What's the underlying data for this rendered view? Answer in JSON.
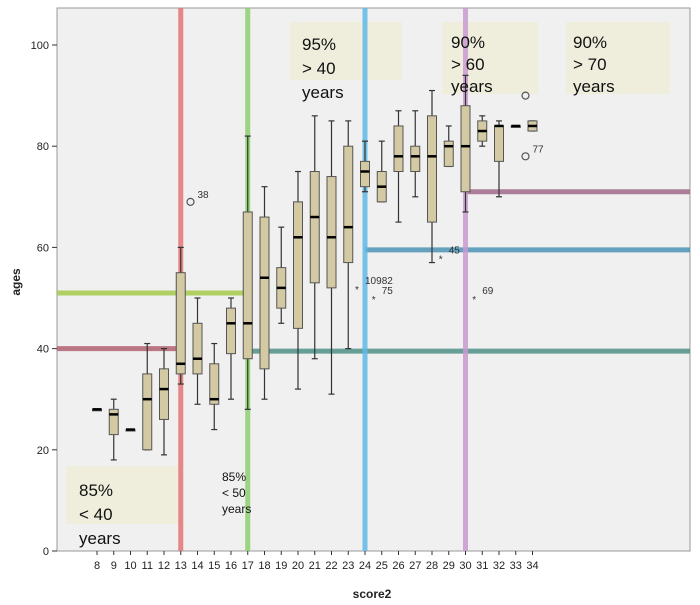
{
  "chart_data": {
    "type": "boxplot",
    "xlabel": "score2",
    "ylabel": "ages",
    "ylim": [
      0,
      105
    ],
    "yticks": [
      0,
      20,
      40,
      60,
      80,
      100
    ],
    "categories": [
      "8",
      "9",
      "10",
      "11",
      "12",
      "13",
      "14",
      "15",
      "16",
      "17",
      "18",
      "19",
      "20",
      "21",
      "22",
      "23",
      "24",
      "25",
      "26",
      "27",
      "28",
      "29",
      "30",
      "31",
      "32",
      "33",
      "34"
    ],
    "boxes": [
      {
        "x": "8",
        "min": 28,
        "q1": 28,
        "median": 28,
        "q3": 28,
        "max": 28
      },
      {
        "x": "9",
        "min": 18,
        "q1": 23,
        "median": 27,
        "q3": 28,
        "max": 30
      },
      {
        "x": "10",
        "min": 24,
        "q1": 24,
        "median": 24,
        "q3": 24,
        "max": 24
      },
      {
        "x": "11",
        "min": 20,
        "q1": 20,
        "median": 30,
        "q3": 35,
        "max": 41
      },
      {
        "x": "12",
        "min": 19,
        "q1": 26,
        "median": 32,
        "q3": 36,
        "max": 40
      },
      {
        "x": "13",
        "min": 33,
        "q1": 35,
        "median": 37,
        "q3": 55,
        "max": 60
      },
      {
        "x": "14",
        "min": 29,
        "q1": 35,
        "median": 38,
        "q3": 45,
        "max": 50
      },
      {
        "x": "15",
        "min": 24,
        "q1": 29,
        "median": 30,
        "q3": 37,
        "max": 41
      },
      {
        "x": "16",
        "min": 30,
        "q1": 39,
        "median": 45,
        "q3": 48,
        "max": 50
      },
      {
        "x": "17",
        "min": 28,
        "q1": 38,
        "median": 45,
        "q3": 67,
        "max": 82
      },
      {
        "x": "18",
        "min": 30,
        "q1": 36,
        "median": 54,
        "q3": 66,
        "max": 72
      },
      {
        "x": "19",
        "min": 45,
        "q1": 48,
        "median": 52,
        "q3": 56,
        "max": 64
      },
      {
        "x": "20",
        "min": 32,
        "q1": 44,
        "median": 62,
        "q3": 69,
        "max": 75
      },
      {
        "x": "21",
        "min": 38,
        "q1": 53,
        "median": 66,
        "q3": 75,
        "max": 86
      },
      {
        "x": "22",
        "min": 31,
        "q1": 52,
        "median": 62,
        "q3": 74,
        "max": 85
      },
      {
        "x": "23",
        "min": 40,
        "q1": 57,
        "median": 64,
        "q3": 80,
        "max": 85
      },
      {
        "x": "24",
        "min": 71,
        "q1": 72,
        "median": 75,
        "q3": 77,
        "max": 81
      },
      {
        "x": "25",
        "min": 69,
        "q1": 69,
        "median": 72,
        "q3": 75,
        "max": 81
      },
      {
        "x": "26",
        "min": 65,
        "q1": 75,
        "median": 78,
        "q3": 84,
        "max": 87
      },
      {
        "x": "27",
        "min": 70,
        "q1": 75,
        "median": 78,
        "q3": 80,
        "max": 87
      },
      {
        "x": "28",
        "min": 57,
        "q1": 65,
        "median": 78,
        "q3": 86,
        "max": 91
      },
      {
        "x": "29",
        "min": 76,
        "q1": 76,
        "median": 80,
        "q3": 81,
        "max": 84
      },
      {
        "x": "30",
        "min": 67,
        "q1": 71,
        "median": 80,
        "q3": 88,
        "max": 94
      },
      {
        "x": "31",
        "min": 80,
        "q1": 81,
        "median": 83,
        "q3": 85,
        "max": 86
      },
      {
        "x": "32",
        "min": 70,
        "q1": 77,
        "median": 84,
        "q3": 84,
        "max": 85
      },
      {
        "x": "33",
        "min": 84,
        "q1": 84,
        "median": 84,
        "q3": 84,
        "max": 84
      },
      {
        "x": "34",
        "min": 83,
        "q1": 83,
        "median": 84,
        "q3": 85,
        "max": 85
      }
    ],
    "outliers": [
      {
        "x": "14",
        "y": 69,
        "marker": "circle",
        "label": "38"
      },
      {
        "x": "24",
        "y": 52,
        "marker": "star",
        "label": "109"
      },
      {
        "x": "25",
        "y": 50,
        "marker": "star",
        "label": "75"
      },
      {
        "x": "25",
        "y": 52,
        "marker": "none",
        "label": "82"
      },
      {
        "x": "29",
        "y": 58,
        "marker": "star",
        "label": "45"
      },
      {
        "x": "31",
        "y": 50,
        "marker": "star",
        "label": "69"
      },
      {
        "x": "34",
        "y": 90,
        "marker": "circle",
        "label": ""
      },
      {
        "x": "34",
        "y": 78,
        "marker": "circle",
        "label": "77"
      }
    ],
    "cutoff_lines": [
      {
        "score": "13",
        "age": 40,
        "color": "#e57373",
        "hcolor": "#b0606e"
      },
      {
        "score": "17",
        "age": 51,
        "color": "#8ccf6e",
        "hcolor": "#a6c94a"
      },
      {
        "score": "24",
        "age": 39.5,
        "color": "#5fb8e6",
        "hcolor": "#4f8f86"
      },
      {
        "score": "30",
        "age": 71,
        "color": "#c99ad0",
        "hcolor": "#a06a8a"
      }
    ],
    "extra_hlines": [
      {
        "from": "24",
        "age": 59.5,
        "color": "#4a93b5"
      }
    ],
    "annotations": [
      {
        "lines": [
          "85%",
          "< 40",
          "years"
        ],
        "size": "large"
      },
      {
        "lines": [
          "85%",
          "< 50",
          "years"
        ],
        "size": "small"
      },
      {
        "lines": [
          "95%",
          "> 40",
          "years"
        ],
        "size": "large"
      },
      {
        "lines": [
          "90%",
          "> 60",
          "years"
        ],
        "size": "large"
      },
      {
        "lines": [
          "90%",
          "> 70",
          "years"
        ],
        "size": "large"
      }
    ],
    "colors": {
      "plot_bg": "#f0f0f0",
      "box_fill": "#d3c9a3",
      "box_stroke": "#555555",
      "label_bg": "#efeedd"
    }
  }
}
